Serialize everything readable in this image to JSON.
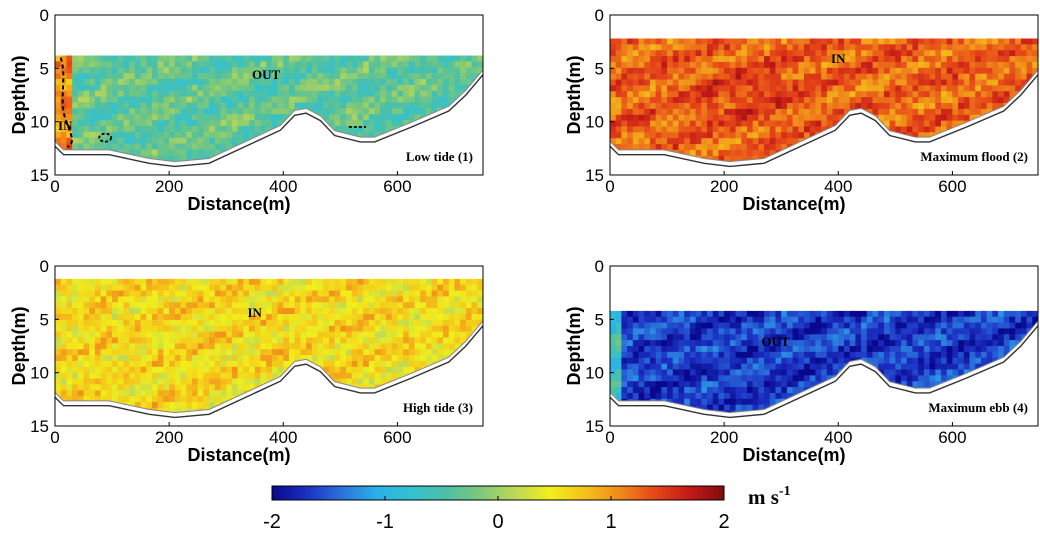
{
  "chart_data": [
    {
      "type": "heatmap",
      "title": "",
      "panel_label": "Low tide (1)",
      "xlabel": "Distance(m)",
      "ylabel": "Depth(m)",
      "xlim": [
        0,
        750
      ],
      "ylim": [
        15,
        0
      ],
      "x_ticks": [
        0,
        200,
        400,
        600
      ],
      "y_ticks": [
        0,
        5,
        10,
        15
      ],
      "surface_depth": 3.8,
      "mean_velocity": -0.35,
      "zero_contour": true,
      "labels": [
        {
          "text": "OUT",
          "x": 370,
          "y": 6.0
        },
        {
          "text": "IN",
          "x": 18,
          "y": 10.8
        }
      ]
    },
    {
      "type": "heatmap",
      "title": "",
      "panel_label": "Maximum flood (2)",
      "xlabel": "Distance(m)",
      "ylabel": "Depth(m)",
      "xlim": [
        0,
        750
      ],
      "ylim": [
        15,
        0
      ],
      "x_ticks": [
        0,
        200,
        400,
        600
      ],
      "y_ticks": [
        0,
        5,
        10,
        15
      ],
      "surface_depth": 2.2,
      "mean_velocity": 1.25,
      "zero_contour": false,
      "labels": [
        {
          "text": "IN",
          "x": 400,
          "y": 4.5
        }
      ]
    },
    {
      "type": "heatmap",
      "title": "",
      "panel_label": "High tide (3)",
      "xlabel": "Distance(m)",
      "ylabel": "Depth(m)",
      "xlim": [
        0,
        750
      ],
      "ylim": [
        15,
        0
      ],
      "x_ticks": [
        0,
        200,
        400,
        600
      ],
      "y_ticks": [
        0,
        5,
        10,
        15
      ],
      "surface_depth": 1.2,
      "mean_velocity": 0.6,
      "zero_contour": false,
      "labels": [
        {
          "text": "IN",
          "x": 350,
          "y": 4.8
        }
      ]
    },
    {
      "type": "heatmap",
      "title": "",
      "panel_label": "Maximum ebb (4)",
      "xlabel": "Distance(m)",
      "ylabel": "Depth(m)",
      "xlim": [
        0,
        750
      ],
      "ylim": [
        15,
        0
      ],
      "x_ticks": [
        0,
        200,
        400,
        600
      ],
      "y_ticks": [
        0,
        5,
        10,
        15
      ],
      "surface_depth": 4.2,
      "mean_velocity": -1.65,
      "zero_contour": false,
      "labels": [
        {
          "text": "OUT",
          "x": 290,
          "y": 7.5
        }
      ]
    }
  ],
  "bathymetry": {
    "x": [
      0,
      15,
      95,
      165,
      210,
      270,
      395,
      420,
      440,
      465,
      490,
      535,
      560,
      625,
      690,
      720,
      750
    ],
    "depth": [
      12.2,
      13.0,
      13.0,
      13.8,
      14.1,
      13.8,
      10.7,
      9.3,
      9.1,
      9.8,
      11.2,
      11.8,
      11.8,
      10.4,
      8.9,
      7.4,
      5.5
    ]
  },
  "colorbar": {
    "ticks": [
      "-2",
      "-1",
      "0",
      "1",
      "2"
    ],
    "range": [
      -2,
      2
    ],
    "unit_base": "m s",
    "unit_exp": "-1",
    "colors": [
      "#08088c",
      "#1c30c2",
      "#2a72db",
      "#2ab0e8",
      "#34c1d0",
      "#4cc0a6",
      "#7ec87a",
      "#bed856",
      "#f1ef1c",
      "#f5c21a",
      "#f08a1a",
      "#e64718",
      "#c31a17",
      "#7f0d0d"
    ]
  }
}
